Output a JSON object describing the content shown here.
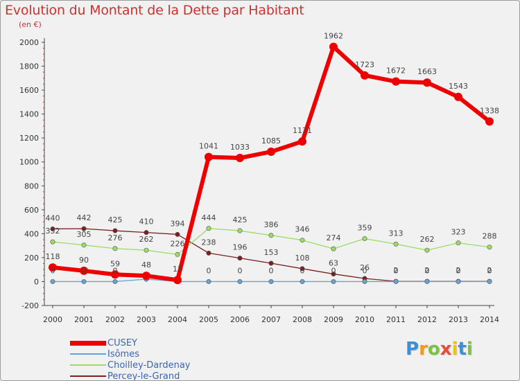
{
  "chart_data": {
    "type": "line",
    "title": "Evolution du Montant de la Dette par Habitant",
    "subtitle": "(en €)",
    "xlabel": "",
    "ylabel": "",
    "x": [
      "2000",
      "2001",
      "2002",
      "2003",
      "2004",
      "2005",
      "2006",
      "2007",
      "2008",
      "2009",
      "2010",
      "2011",
      "2012",
      "2013",
      "2014"
    ],
    "ylim": [
      -200,
      2000
    ],
    "yticks": [
      -200,
      0,
      200,
      400,
      600,
      800,
      1000,
      1200,
      1400,
      1600,
      1800,
      2000
    ],
    "grid": false,
    "legend_position": "bottom-left",
    "series": [
      {
        "name": "CUSEY",
        "color": "#ee0000",
        "values": [
          118,
          90,
          59,
          48,
          13,
          1041,
          1033,
          1085,
          1171,
          1962,
          1723,
          1672,
          1663,
          1543,
          1338
        ],
        "labels": [
          "118",
          "90",
          "59",
          "48",
          "13",
          "1041",
          "1033",
          "1085",
          "1171",
          "1962",
          "1723",
          "1672",
          "1663",
          "1543",
          "1338"
        ]
      },
      {
        "name": "Isômes",
        "color": "#66a3d2",
        "values": [
          0,
          0,
          0,
          20,
          0,
          0,
          0,
          0,
          0,
          0,
          0,
          0,
          0,
          0,
          0
        ],
        "labels": [
          "0",
          "0",
          "0",
          "",
          "",
          "0",
          "0",
          "0",
          "0",
          "0",
          "0",
          "0",
          "0",
          "0",
          "0"
        ]
      },
      {
        "name": "Choilley-Dardenay",
        "color": "#99dd66",
        "values": [
          332,
          305,
          276,
          262,
          226,
          444,
          425,
          386,
          346,
          274,
          359,
          313,
          262,
          323,
          288
        ],
        "labels": [
          "332",
          "305",
          "276",
          "262",
          "226",
          "444",
          "425",
          "386",
          "346",
          "274",
          "359",
          "313",
          "262",
          "323",
          "288"
        ]
      },
      {
        "name": "Percey-le-Grand",
        "color": "#7a1f1f",
        "values": [
          440,
          442,
          425,
          410,
          394,
          238,
          196,
          153,
          108,
          63,
          26,
          2,
          2,
          2,
          2
        ],
        "labels": [
          "440",
          "442",
          "425",
          "410",
          "394",
          "238",
          "196",
          "153",
          "108",
          "63",
          "26",
          "2",
          "2",
          "2",
          "2"
        ]
      }
    ]
  },
  "logo": {
    "text": "Proxiti",
    "colors": [
      "#3c8fd6",
      "#f39c12",
      "#7cc242",
      "#e74c3c",
      "#f1c40f",
      "#3c8fd6",
      "#7cc242"
    ]
  }
}
